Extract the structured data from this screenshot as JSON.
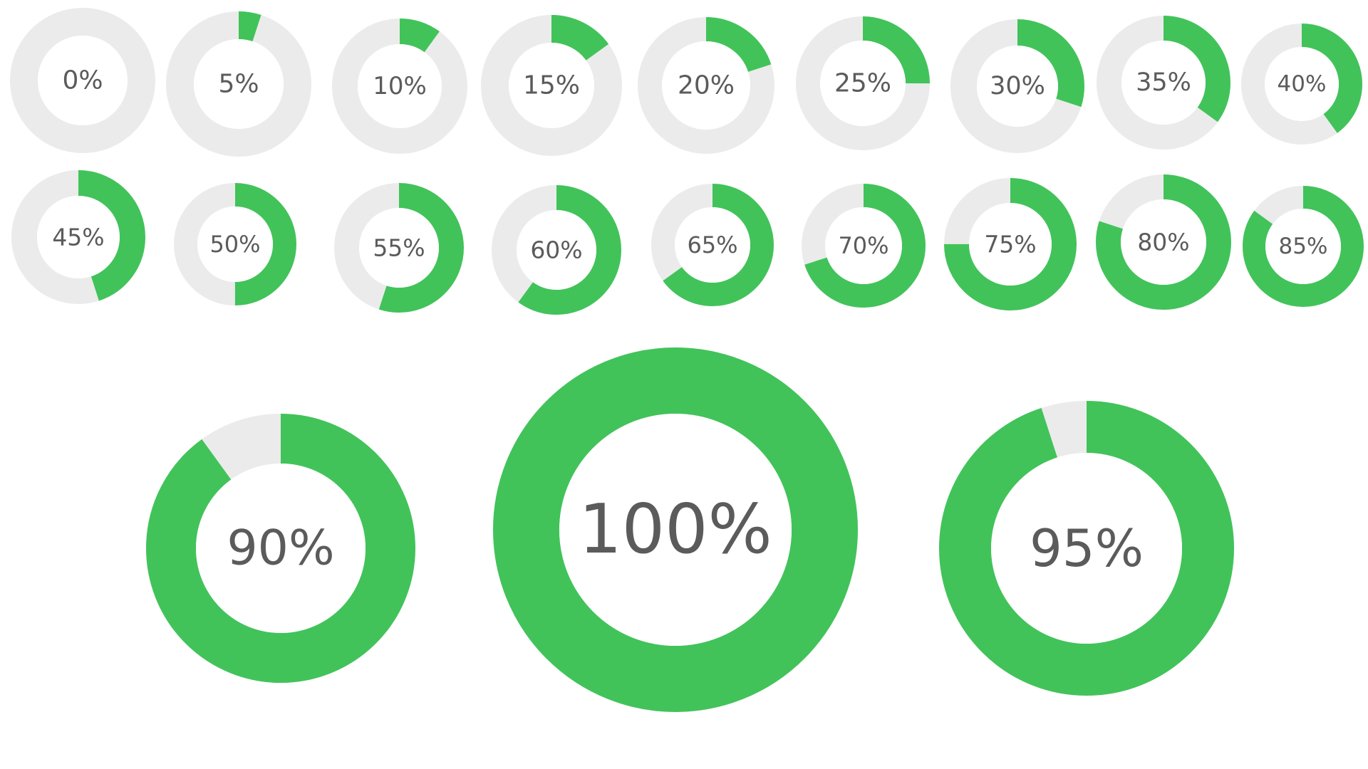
{
  "colors": {
    "progress": "#41c35a",
    "track": "#ebebeb",
    "center": "#ffffff",
    "label": "#5b5b5b"
  },
  "rings": [
    {
      "value": 0,
      "label": "0%"
    },
    {
      "value": 5,
      "label": "5%"
    },
    {
      "value": 10,
      "label": "10%"
    },
    {
      "value": 15,
      "label": "15%"
    },
    {
      "value": 20,
      "label": "20%"
    },
    {
      "value": 25,
      "label": "25%"
    },
    {
      "value": 30,
      "label": "30%"
    },
    {
      "value": 35,
      "label": "35%"
    },
    {
      "value": 40,
      "label": "40%"
    },
    {
      "value": 45,
      "label": "45%"
    },
    {
      "value": 50,
      "label": "50%"
    },
    {
      "value": 55,
      "label": "55%"
    },
    {
      "value": 60,
      "label": "60%"
    },
    {
      "value": 65,
      "label": "65%"
    },
    {
      "value": 70,
      "label": "70%"
    },
    {
      "value": 75,
      "label": "75%"
    },
    {
      "value": 80,
      "label": "80%"
    },
    {
      "value": 85,
      "label": "85%"
    },
    {
      "value": 90,
      "label": "90%"
    },
    {
      "value": 100,
      "label": "100%"
    },
    {
      "value": 95,
      "label": "95%"
    }
  ]
}
